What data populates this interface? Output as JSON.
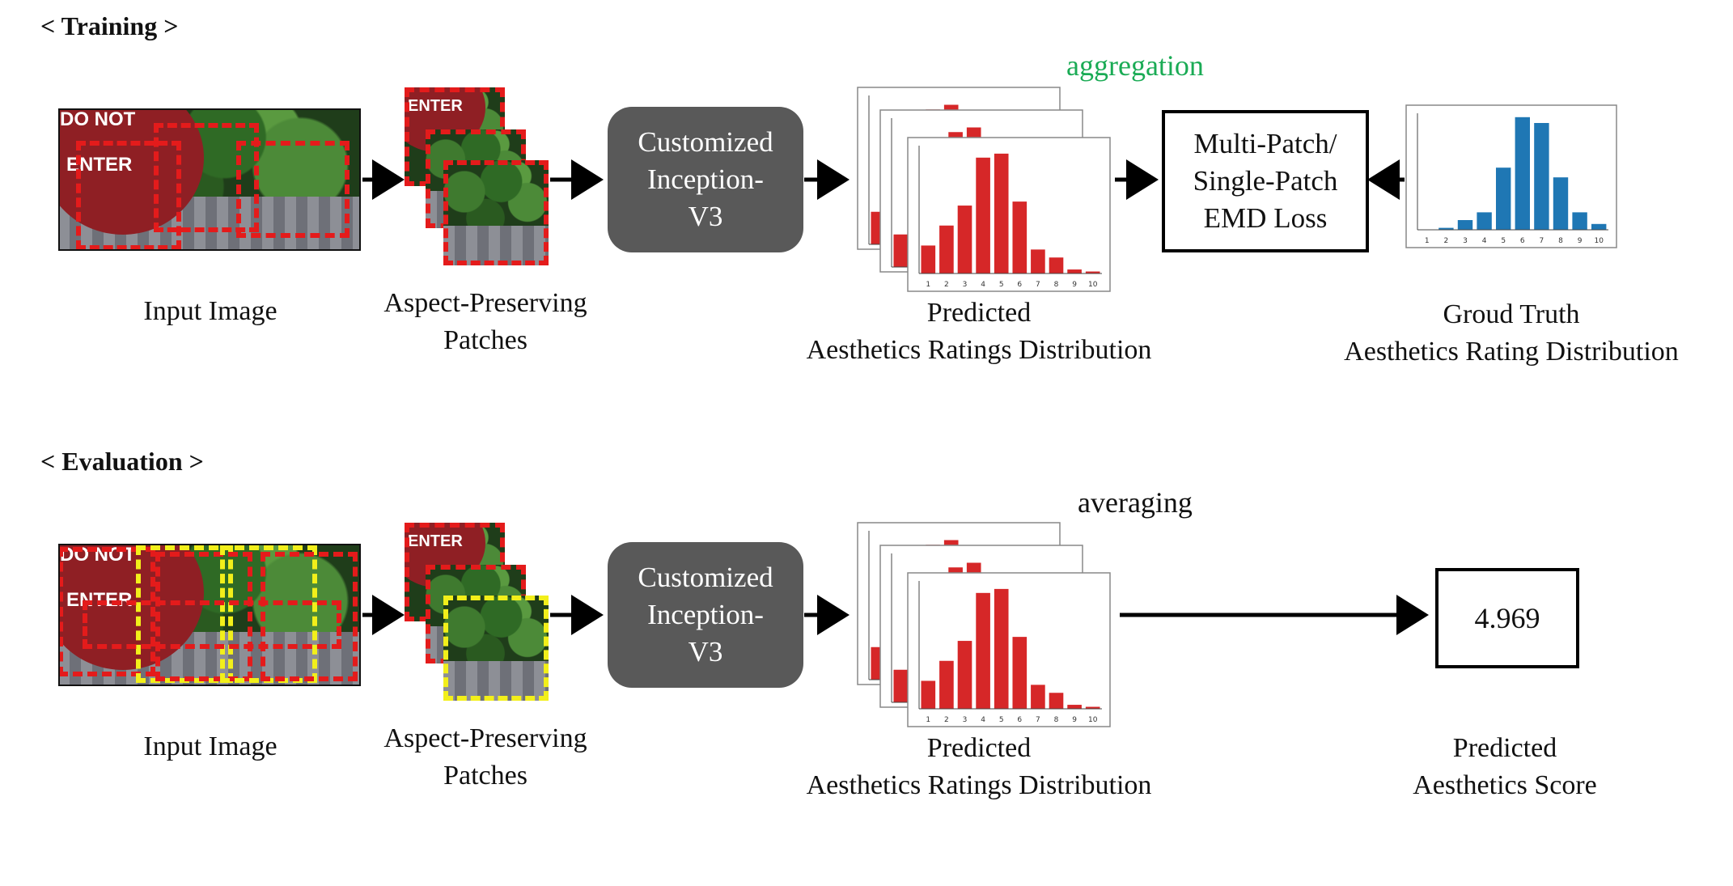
{
  "training": {
    "title": "< Training >",
    "input_caption": "Input Image",
    "patches_caption": [
      "Aspect-Preserving",
      "Patches"
    ],
    "model_lines": [
      "Customized",
      "Inception-",
      "V3"
    ],
    "aggregation_label": "aggregation",
    "predicted_caption": [
      "Predicted",
      "Aesthetics Ratings Distribution"
    ],
    "loss_lines": [
      "Multi-Patch/",
      "Single-Patch",
      "EMD Loss"
    ],
    "gt_caption": [
      "Groud Truth",
      "Aesthetics Rating Distribution"
    ]
  },
  "evaluation": {
    "title": "< Evaluation >",
    "input_caption": "Input Image",
    "patches_caption": [
      "Aspect-Preserving",
      "Patches"
    ],
    "model_lines": [
      "Customized",
      "Inception-",
      "V3"
    ],
    "averaging_label": "averaging",
    "predicted_caption": [
      "Predicted",
      "Aesthetics Ratings Distribution"
    ],
    "score_value": "4.969",
    "score_caption": [
      "Predicted",
      "Aesthetics Score"
    ]
  },
  "image_text": {
    "sign_line1": "DO  NOT",
    "sign_line2": "ENTER"
  },
  "chart_data": [
    {
      "type": "bar",
      "categories": [
        "1",
        "2",
        "3",
        "4",
        "5",
        "6",
        "7",
        "8",
        "9",
        "10"
      ],
      "values": [
        0.07,
        0.12,
        0.17,
        0.29,
        0.3,
        0.18,
        0.06,
        0.04,
        0.01,
        0.005
      ],
      "color": "#d62728",
      "ylim": [
        0,
        0.32
      ]
    },
    {
      "type": "bar",
      "categories": [
        "1",
        "2",
        "3",
        "4",
        "5",
        "6",
        "7",
        "8",
        "9",
        "10"
      ],
      "values": [
        0.0,
        0.005,
        0.025,
        0.045,
        0.16,
        0.29,
        0.275,
        0.135,
        0.045,
        0.015
      ],
      "color": "#1f77b4",
      "ylim": [
        0,
        0.3
      ]
    }
  ],
  "colors": {
    "model_box": "#595959",
    "accent_green": "#1aab55",
    "patch_red": "#e41b1b",
    "patch_yellow": "#f2ef1a"
  }
}
